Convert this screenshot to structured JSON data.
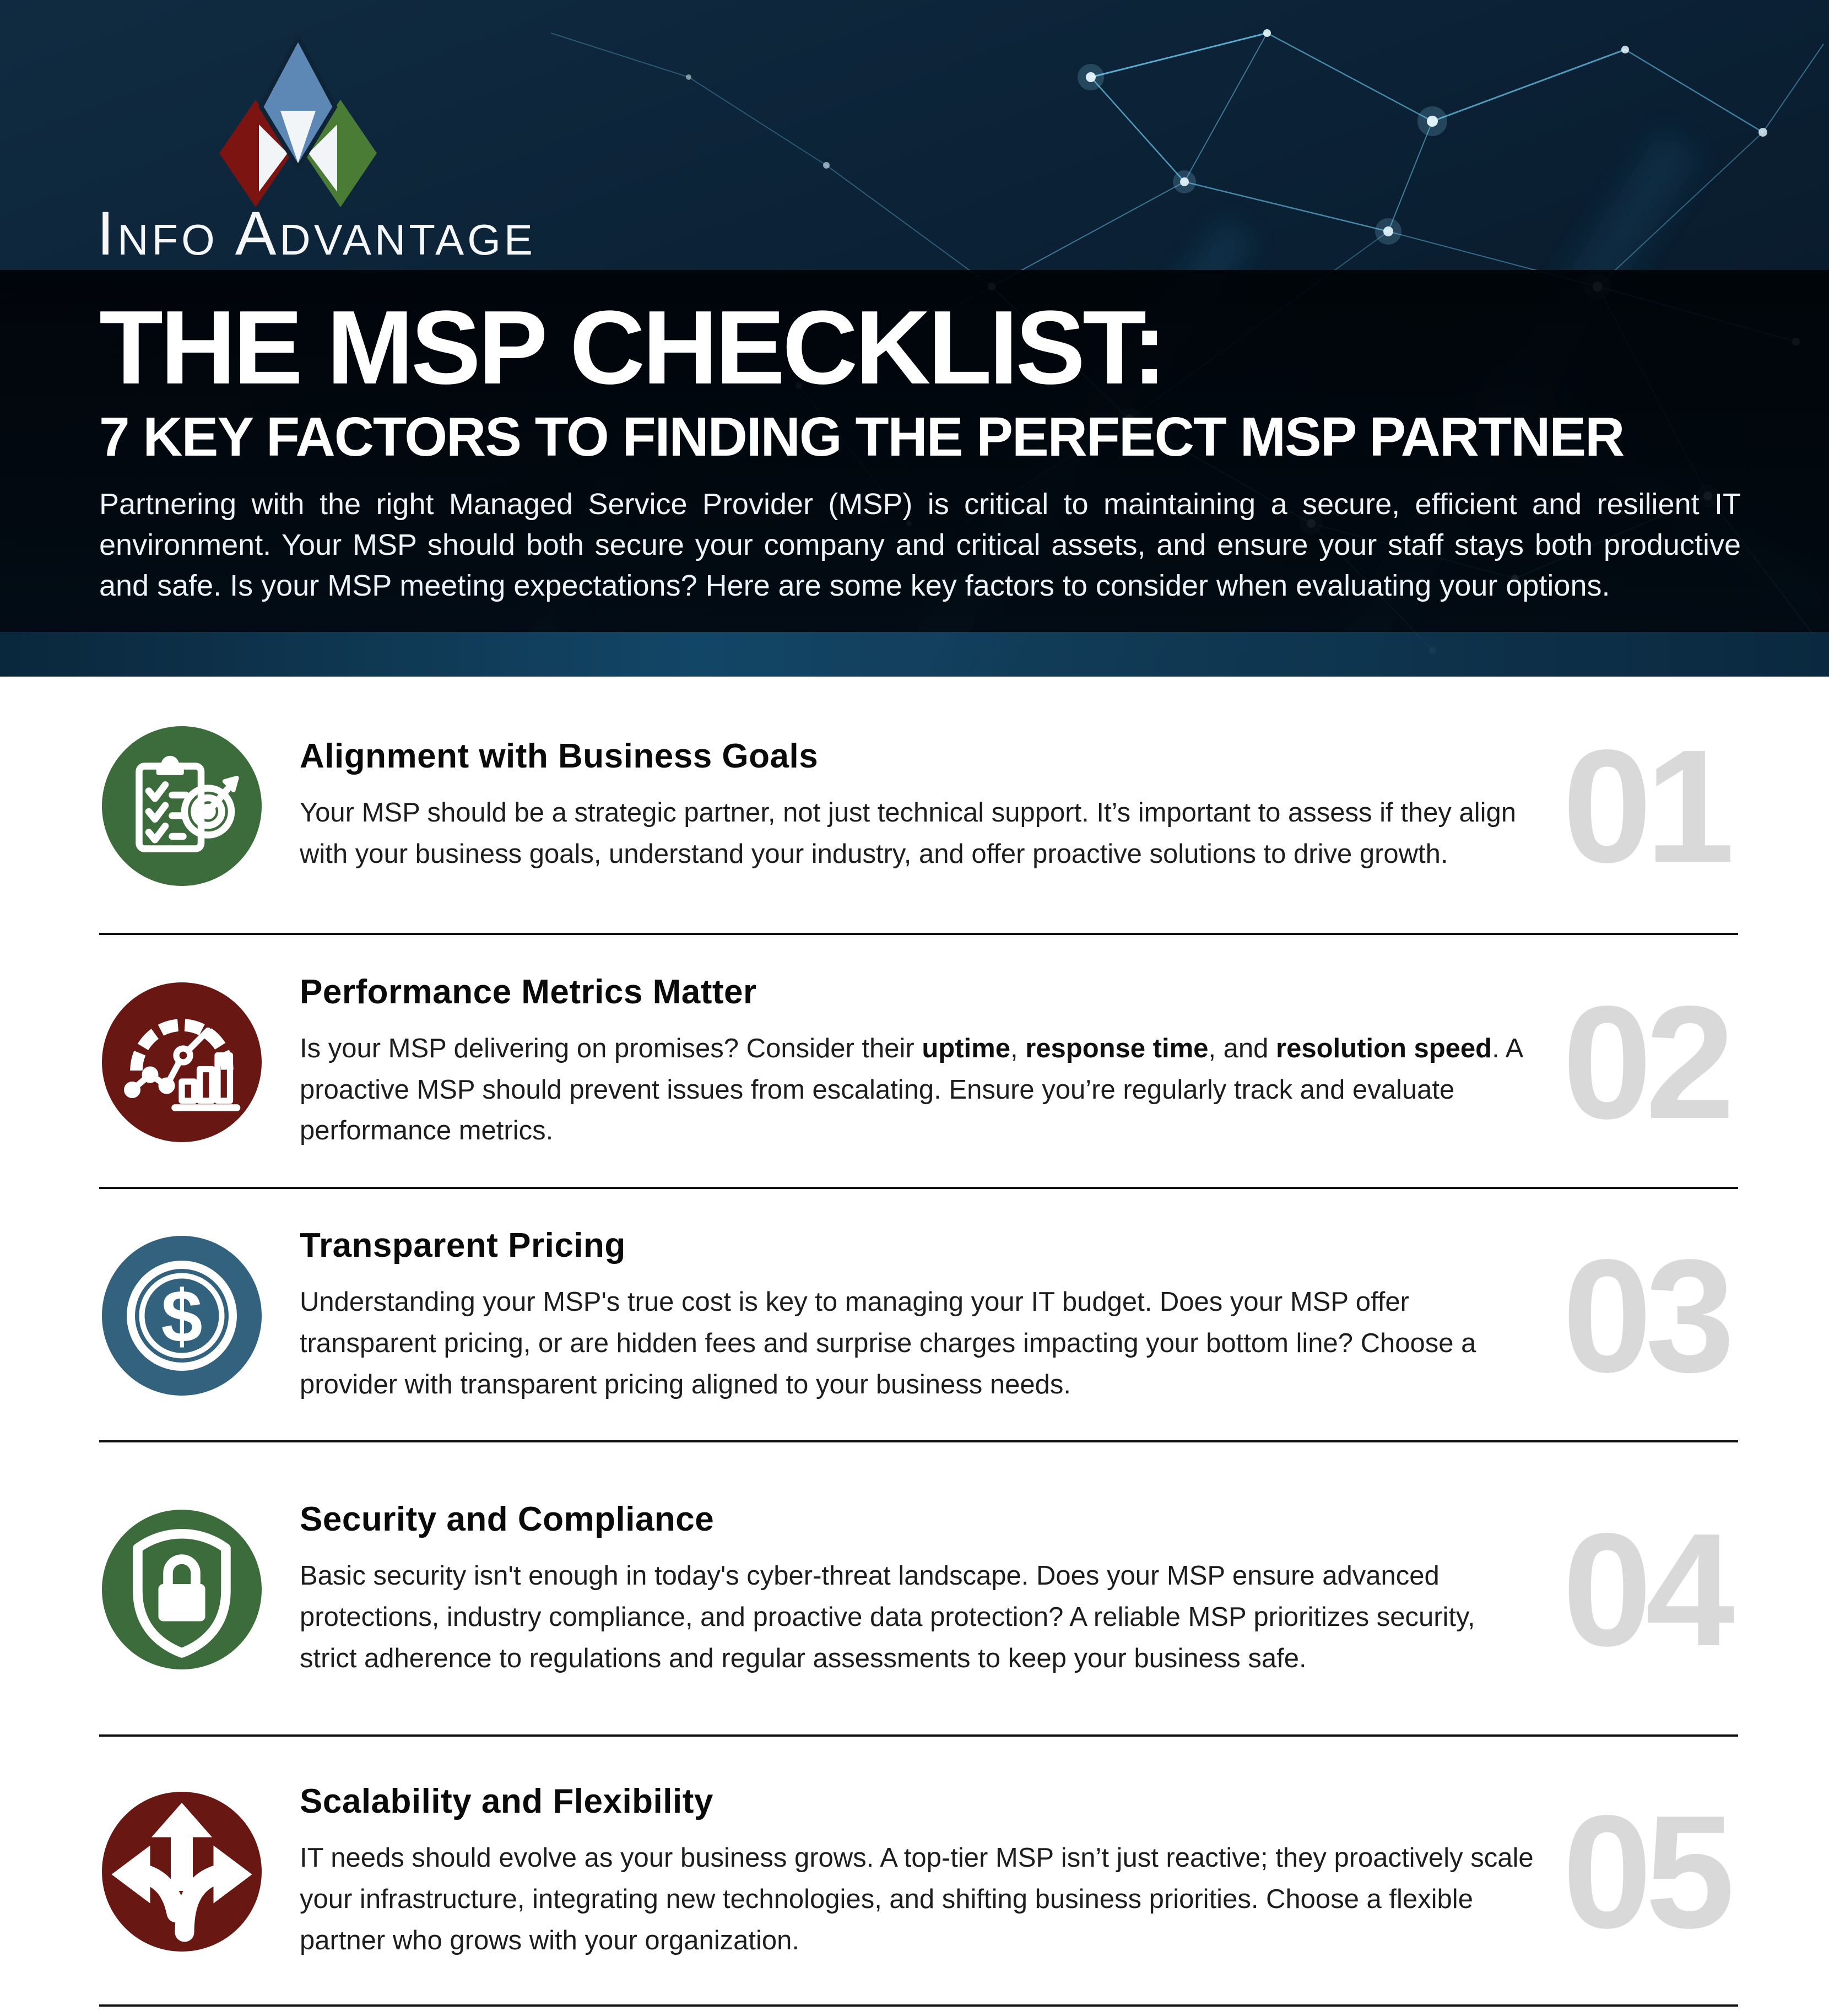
{
  "brand": {
    "name": "Info Advantage"
  },
  "header": {
    "title_line1": "THE MSP CHECKLIST:",
    "title_line2": "7 KEY FACTORS TO FINDING THE PERFECT MSP PARTNER",
    "intro": "Partnering with the right Managed Service Provider (MSP) is critical to maintaining a secure, efficient and resilient IT environment. Your MSP should both secure your company and critical assets, and ensure your staff stays both productive and safe. Is your MSP meeting expectations? Here are some key factors to consider when evaluating your options."
  },
  "colors": {
    "hero_navy": "#0d2133",
    "plexus_line": "#6ecdf6",
    "number_gray": "#d9d9d9",
    "divider": "#101010",
    "accent_green": "#3c6b3c",
    "accent_maroon": "#691713",
    "accent_blue": "#33627f",
    "logo_blue": "#5d88b6",
    "logo_red": "#7c1412",
    "logo_green": "#4b7c35"
  },
  "items": [
    {
      "number": "01",
      "title": "Alignment with Business Goals",
      "icon": "clipboard-target-icon",
      "accent": "#3c6b3c",
      "body": [
        {
          "text": "Your MSP should be a strategic partner, not just technical support. It’s important to assess if they align with your business goals, understand your industry, and offer proactive solutions to drive growth.",
          "bold": false
        }
      ]
    },
    {
      "number": "02",
      "title": "Performance Metrics Matter",
      "icon": "speedometer-chart-icon",
      "accent": "#691713",
      "body": [
        {
          "text": "Is your MSP delivering on promises? Consider their ",
          "bold": false
        },
        {
          "text": "uptime",
          "bold": true
        },
        {
          "text": ", ",
          "bold": false
        },
        {
          "text": "response time",
          "bold": true
        },
        {
          "text": ", and ",
          "bold": false
        },
        {
          "text": "resolution speed",
          "bold": true
        },
        {
          "text": ". A proactive MSP should prevent issues from escalating. Ensure you’re regularly track and evaluate performance metrics.",
          "bold": false
        }
      ]
    },
    {
      "number": "03",
      "title": "Transparent Pricing",
      "icon": "dollar-coin-icon",
      "accent": "#33627f",
      "body": [
        {
          "text": "Understanding your MSP's true cost is key to managing your IT budget. Does your MSP offer transparent pricing, or are hidden fees and surprise charges impacting your bottom line? Choose a provider with transparent pricing aligned to your business needs.",
          "bold": false
        }
      ]
    },
    {
      "number": "04",
      "title": "Security and Compliance",
      "icon": "shield-lock-icon",
      "accent": "#3c6b3c",
      "body": [
        {
          "text": "Basic security isn't enough in today's cyber-threat landscape. Does your MSP ensure advanced protections, industry compliance, and proactive data protection? A reliable MSP prioritizes security, strict adherence to regulations and regular assessments to keep your business safe.",
          "bold": false
        }
      ]
    },
    {
      "number": "05",
      "title": "Scalability and Flexibility",
      "icon": "three-way-arrows-icon",
      "accent": "#691713",
      "body": [
        {
          "text": "IT needs should evolve as your business grows. A top-tier MSP isn’t just reactive; they proactively scale your infrastructure, integrating new technologies, and shifting business priorities. Choose a flexible partner who grows with your organization.",
          "bold": false
        }
      ]
    }
  ]
}
